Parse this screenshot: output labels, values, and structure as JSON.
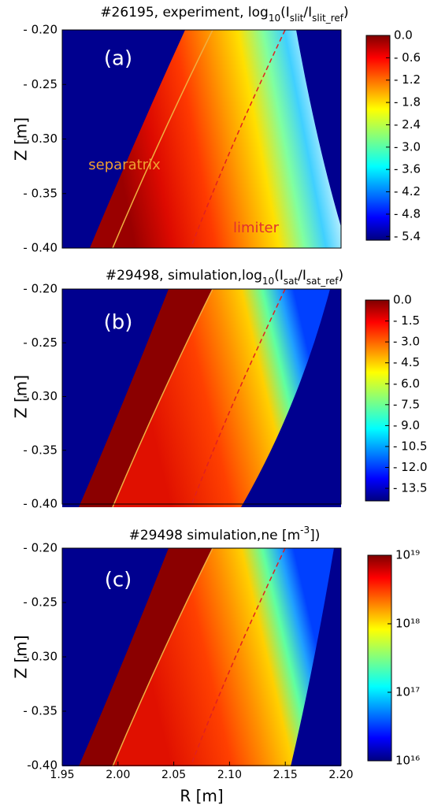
{
  "chart_data": [
    {
      "type": "heatmap",
      "title": [
        "#26195, experiment, log",
        "10",
        "(I",
        "slit",
        "/I",
        "slit_ref",
        ")"
      ],
      "title_script": "sub",
      "ylabel": "Z [m]",
      "ylim": [
        -0.4,
        -0.2
      ],
      "yticks": [
        {
          "value": -0.2,
          "label": "- 0.20"
        },
        {
          "value": -0.25,
          "label": "- 0.25"
        },
        {
          "value": -0.3,
          "label": "- 0.30"
        },
        {
          "value": -0.35,
          "label": "- 0.35"
        },
        {
          "value": -0.4,
          "label": "- 0.40"
        }
      ],
      "annotations": [
        "(a)",
        "separatrix",
        "limiter"
      ],
      "colorbar": {
        "clim": [
          -5.5,
          0
        ],
        "log": false,
        "ticks": [
          {
            "value": 0,
            "label": "0.0"
          },
          {
            "value": -0.6,
            "label": "- 0.6"
          },
          {
            "value": -1.2,
            "label": "- 1.2"
          },
          {
            "value": -1.8,
            "label": "- 1.8"
          },
          {
            "value": -2.4,
            "label": "- 2.4"
          },
          {
            "value": -3.0,
            "label": "- 3.0"
          },
          {
            "value": -3.6,
            "label": "- 3.6"
          },
          {
            "value": -4.2,
            "label": "- 4.2"
          },
          {
            "value": -4.8,
            "label": "- 4.8"
          },
          {
            "value": -5.4,
            "label": "- 5.4"
          }
        ]
      }
    },
    {
      "type": "heatmap",
      "title": [
        "#29498, simulation,log",
        "10",
        "(I",
        "sat",
        "/I",
        "sat_ref",
        ")"
      ],
      "title_script": "sub",
      "ylabel": "Z [m]",
      "ylim": [
        -0.4,
        -0.2
      ],
      "yticks": [
        {
          "value": -0.2,
          "label": "- 0.20"
        },
        {
          "value": -0.25,
          "label": "- 0.25"
        },
        {
          "value": -0.3,
          "label": "- 0.30"
        },
        {
          "value": -0.35,
          "label": "- 0.35"
        },
        {
          "value": -0.4,
          "label": "- 0.40"
        }
      ],
      "annotations": [
        "(b)"
      ],
      "colorbar": {
        "clim": [
          -14.4,
          0
        ],
        "log": false,
        "ticks": [
          {
            "value": 0,
            "label": "0.0"
          },
          {
            "value": -1.5,
            "label": "- 1.5"
          },
          {
            "value": -3.0,
            "label": "- 3.0"
          },
          {
            "value": -4.5,
            "label": "- 4.5"
          },
          {
            "value": -6.0,
            "label": "- 6.0"
          },
          {
            "value": -7.5,
            "label": "- 7.5"
          },
          {
            "value": -9.0,
            "label": "- 9.0"
          },
          {
            "value": -10.5,
            "label": "- 10.5"
          },
          {
            "value": -12.0,
            "label": "- 12.0"
          },
          {
            "value": -13.5,
            "label": "- 13.5"
          }
        ]
      }
    },
    {
      "type": "heatmap",
      "title": [
        "#29498  simulation,ne [m",
        "-3",
        "])"
      ],
      "title_script": "sup",
      "ylabel": "Z [m]",
      "ylim": [
        -0.4,
        -0.2
      ],
      "yticks": [
        {
          "value": -0.2,
          "label": "- 0.20"
        },
        {
          "value": -0.25,
          "label": "- 0.25"
        },
        {
          "value": -0.3,
          "label": "- 0.30"
        },
        {
          "value": -0.35,
          "label": "- 0.35"
        },
        {
          "value": -0.4,
          "label": "-0.40"
        }
      ],
      "xlabel": "R [m]",
      "xlim": [
        1.95,
        2.2
      ],
      "xticks": [
        1.95,
        {
          "value": 2.0,
          "label": "2.00"
        },
        2.05,
        {
          "value": 2.1,
          "label": "2.10"
        },
        2.15,
        {
          "value": 2.2,
          "label": "2.20"
        }
      ],
      "annotations": [
        "(c)"
      ],
      "colorbar": {
        "clim": [
          1e+16,
          1e+19
        ],
        "log": true,
        "ticks": [
          {
            "value": 1e+19,
            "label": "10¹⁹"
          },
          {
            "value": 1e+18,
            "label": "10¹⁸"
          },
          {
            "value": 1e+17,
            "label": "10¹⁷"
          },
          {
            "value": 1e+16,
            "label": "10¹⁶"
          }
        ]
      }
    }
  ]
}
